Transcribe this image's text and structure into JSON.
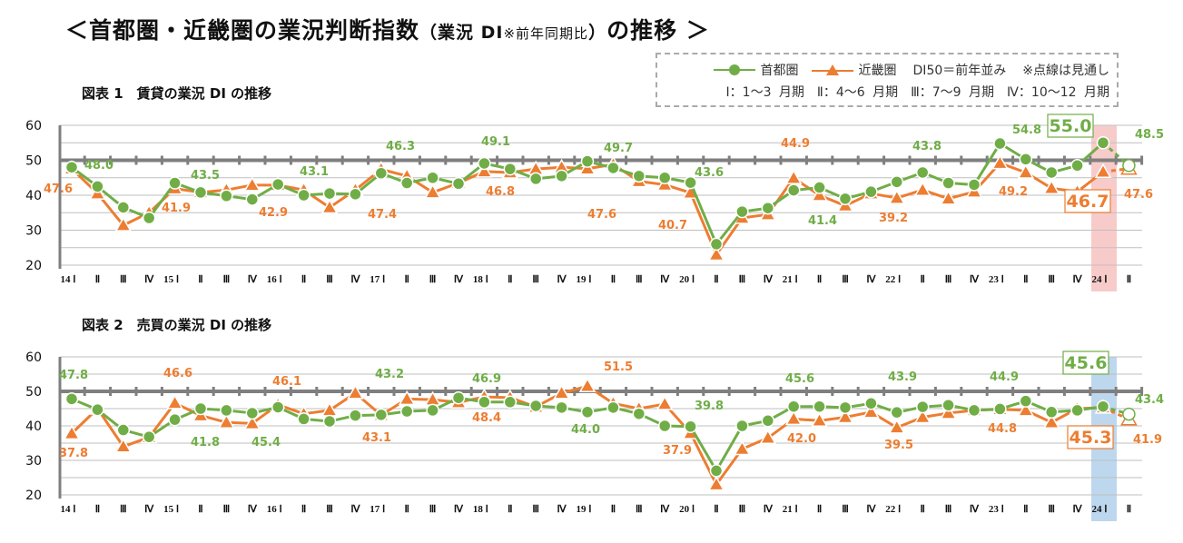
{
  "title": {
    "main": "＜首都圏・近畿圏の業況判断指数",
    "paren_open": "（業況 DI",
    "note": "※前年同期比",
    "paren_close": "）",
    "tail": "の推移 ＞"
  },
  "legend": {
    "series": [
      "首都圏",
      "近畿圏"
    ],
    "note1": "DI50＝前年並み",
    "note2": "※点線は見通し",
    "quarters": "Ⅰ：1～3 月期　Ⅱ：4～6 月期　Ⅲ：7～9 月期　Ⅳ：10～12 月期"
  },
  "colors": {
    "shutoken": "#70AD47",
    "kinki": "#ED7D31",
    "grid": "#BFBFBF",
    "baseline": "#7F7F7F",
    "highlight_top": "#F8CBCB",
    "highlight_bottom": "#BDD7EE"
  },
  "chart_data": [
    {
      "type": "line",
      "title": "図表 1　賃貸の業況 DI の推移",
      "ylim": [
        20,
        60
      ],
      "yticks": [
        "20",
        "30",
        "40",
        "50",
        "60"
      ],
      "reference_line": 50,
      "grid": true,
      "categories": [
        "14 Ⅰ",
        "Ⅱ",
        "Ⅲ",
        "Ⅳ",
        "15 Ⅰ",
        "Ⅱ",
        "Ⅲ",
        "Ⅳ",
        "16 Ⅰ",
        "Ⅱ",
        "Ⅲ",
        "Ⅳ",
        "17 Ⅰ",
        "Ⅱ",
        "Ⅲ",
        "Ⅳ",
        "18 Ⅰ",
        "Ⅱ",
        "Ⅲ",
        "Ⅳ",
        "19 Ⅰ",
        "Ⅱ",
        "Ⅲ",
        "Ⅳ",
        "20 Ⅰ",
        "Ⅱ",
        "Ⅲ",
        "Ⅳ",
        "21 Ⅰ",
        "Ⅱ",
        "Ⅲ",
        "Ⅳ",
        "22 Ⅰ",
        "Ⅱ",
        "Ⅲ",
        "Ⅳ",
        "23 Ⅰ",
        "Ⅱ",
        "Ⅲ",
        "Ⅳ",
        "24 Ⅰ",
        "Ⅱ"
      ],
      "highlight_category": "24 Ⅰ",
      "forecast_category": "Ⅱ",
      "series": [
        {
          "name": "首都圏",
          "marker": "circle",
          "values": [
            48.0,
            42.5,
            36.5,
            33.5,
            43.5,
            40.8,
            39.8,
            38.8,
            43.1,
            40.0,
            40.5,
            40.3,
            46.3,
            43.5,
            45.0,
            43.3,
            49.1,
            47.5,
            44.7,
            45.5,
            49.7,
            47.8,
            45.5,
            45.0,
            43.6,
            26.0,
            35.3,
            36.3,
            41.4,
            42.2,
            39.0,
            41.0,
            43.8,
            46.5,
            43.5,
            43.0,
            54.8,
            50.3,
            46.5,
            48.5,
            55.0,
            48.5
          ],
          "labels": [
            [
              0,
              "48.0"
            ],
            [
              4,
              "43.5"
            ],
            [
              8,
              "43.1"
            ],
            [
              12,
              "46.3"
            ],
            [
              16,
              "49.1"
            ],
            [
              20,
              "49.7"
            ],
            [
              24,
              "43.6"
            ],
            [
              28,
              "41.4"
            ],
            [
              32,
              "43.8"
            ],
            [
              36,
              "54.8"
            ],
            [
              40,
              "55.0"
            ],
            [
              41,
              "48.5"
            ]
          ]
        },
        {
          "name": "近畿圏",
          "marker": "triangle",
          "values": [
            47.6,
            40.5,
            31.4,
            35.0,
            41.9,
            40.8,
            41.5,
            42.9,
            42.9,
            41.5,
            36.5,
            41.5,
            47.4,
            45.5,
            40.8,
            43.5,
            46.8,
            46.5,
            47.5,
            48.0,
            47.6,
            48.8,
            44.0,
            43.0,
            40.7,
            23.0,
            33.5,
            34.5,
            44.9,
            40.0,
            37.0,
            40.5,
            39.2,
            41.5,
            39.0,
            41.0,
            49.2,
            46.5,
            42.0,
            41.0,
            46.7,
            47.6
          ],
          "labels": [
            [
              0,
              "47.6"
            ],
            [
              4,
              "41.9"
            ],
            [
              8,
              "42.9"
            ],
            [
              12,
              "47.4"
            ],
            [
              16,
              "46.8"
            ],
            [
              20,
              "47.6"
            ],
            [
              24,
              "40.7"
            ],
            [
              28,
              "44.9"
            ],
            [
              32,
              "39.2"
            ],
            [
              36,
              "49.2"
            ],
            [
              40,
              "46.7"
            ],
            [
              41,
              "47.6"
            ]
          ]
        }
      ]
    },
    {
      "type": "line",
      "title": "図表 2　売買の業況 DI の推移",
      "ylim": [
        20,
        60
      ],
      "yticks": [
        "20",
        "30",
        "40",
        "50",
        "60"
      ],
      "reference_line": 50,
      "grid": true,
      "categories": [
        "14 Ⅰ",
        "Ⅱ",
        "Ⅲ",
        "Ⅳ",
        "15 Ⅰ",
        "Ⅱ",
        "Ⅲ",
        "Ⅳ",
        "16 Ⅰ",
        "Ⅱ",
        "Ⅲ",
        "Ⅳ",
        "17 Ⅰ",
        "Ⅱ",
        "Ⅲ",
        "Ⅳ",
        "18 Ⅰ",
        "Ⅱ",
        "Ⅲ",
        "Ⅳ",
        "19 Ⅰ",
        "Ⅱ",
        "Ⅲ",
        "Ⅳ",
        "20 Ⅰ",
        "Ⅱ",
        "Ⅲ",
        "Ⅳ",
        "21 Ⅰ",
        "Ⅱ",
        "Ⅲ",
        "Ⅳ",
        "22 Ⅰ",
        "Ⅱ",
        "Ⅲ",
        "Ⅳ",
        "23 Ⅰ",
        "Ⅱ",
        "Ⅲ",
        "Ⅳ",
        "24 Ⅰ",
        "Ⅱ"
      ],
      "highlight_category": "24 Ⅰ",
      "forecast_category": "Ⅱ",
      "series": [
        {
          "name": "首都圏",
          "marker": "circle",
          "values": [
            47.8,
            44.7,
            38.8,
            36.8,
            41.8,
            45.0,
            44.5,
            43.7,
            45.4,
            42.0,
            41.3,
            43.0,
            43.2,
            44.2,
            44.5,
            48.1,
            46.9,
            46.9,
            45.8,
            45.3,
            44.0,
            45.3,
            43.5,
            40.0,
            39.8,
            27.0,
            40.0,
            41.5,
            45.6,
            45.6,
            45.3,
            46.5,
            43.9,
            45.5,
            46.0,
            44.5,
            44.9,
            47.2,
            44.0,
            44.5,
            45.6,
            43.4
          ],
          "labels": [
            [
              0,
              "47.8"
            ],
            [
              4,
              "41.8"
            ],
            [
              8,
              "45.4"
            ],
            [
              12,
              "43.2"
            ],
            [
              16,
              "46.9"
            ],
            [
              20,
              "44.0"
            ],
            [
              24,
              "39.8"
            ],
            [
              28,
              "45.6"
            ],
            [
              32,
              "43.9"
            ],
            [
              36,
              "44.9"
            ],
            [
              40,
              "45.6"
            ],
            [
              41,
              "43.4"
            ]
          ]
        },
        {
          "name": "近畿圏",
          "marker": "triangle",
          "values": [
            37.8,
            45.0,
            34.0,
            36.7,
            46.6,
            43.0,
            41.0,
            40.7,
            46.1,
            43.5,
            44.5,
            49.5,
            43.1,
            47.8,
            47.6,
            46.8,
            48.4,
            48.2,
            45.5,
            49.5,
            51.5,
            46.5,
            45.0,
            46.3,
            37.9,
            23.0,
            33.3,
            36.5,
            42.0,
            41.5,
            42.5,
            44.0,
            39.5,
            42.5,
            43.7,
            44.5,
            44.8,
            44.5,
            41.0,
            45.0,
            45.3,
            41.9
          ],
          "labels": [
            [
              0,
              "37.8"
            ],
            [
              4,
              "46.6"
            ],
            [
              8,
              "46.1"
            ],
            [
              12,
              "43.1"
            ],
            [
              16,
              "48.4"
            ],
            [
              20,
              "51.5"
            ],
            [
              24,
              "37.9"
            ],
            [
              28,
              "42.0"
            ],
            [
              32,
              "39.5"
            ],
            [
              36,
              "44.8"
            ],
            [
              40,
              "45.3"
            ],
            [
              41,
              "41.9"
            ]
          ]
        }
      ]
    }
  ]
}
